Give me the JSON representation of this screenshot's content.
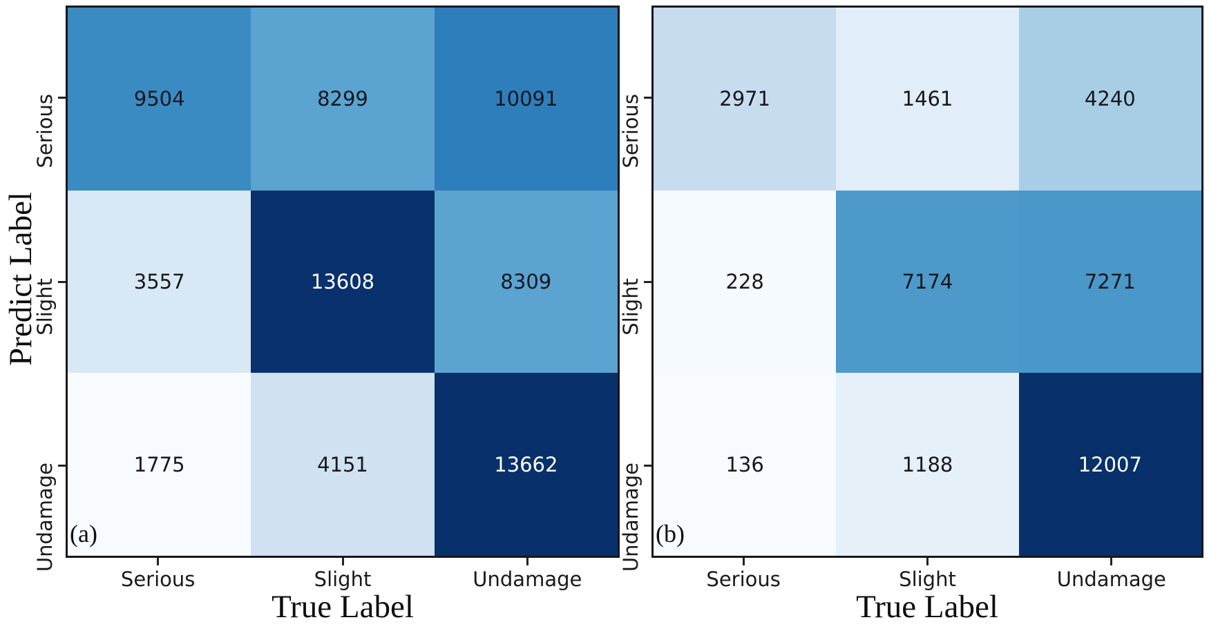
{
  "figure": {
    "background": "#ffffff",
    "spine_color": "#17171c",
    "tick_color": "#222222",
    "cell_text_dark": "#17181d",
    "cell_text_light": "#ffffff",
    "colormap": "Blues"
  },
  "chart_data": [
    {
      "type": "heatmap",
      "panel_label": "(a)",
      "xlabel": "True Label",
      "ylabel": "Predict Label",
      "x_categories": [
        "Serious",
        "Slight",
        "Undamage"
      ],
      "y_categories": [
        "Serious",
        "Slight",
        "Undamage"
      ],
      "values": [
        [
          9504,
          8299,
          10091
        ],
        [
          3557,
          13608,
          8309
        ],
        [
          1775,
          4151,
          13662
        ]
      ],
      "colormap": "Blues",
      "color_scale": {
        "min": 1775,
        "max": 13662
      },
      "grid": false,
      "legend": "none"
    },
    {
      "type": "heatmap",
      "panel_label": "(b)",
      "xlabel": "True Label",
      "ylabel": "",
      "x_categories": [
        "Serious",
        "Slight",
        "Undamage"
      ],
      "y_categories": [
        "Serious",
        "Slight",
        "Undamage"
      ],
      "values": [
        [
          2971,
          1461,
          4240
        ],
        [
          228,
          7174,
          7271
        ],
        [
          136,
          1188,
          12007
        ]
      ],
      "colormap": "Blues",
      "color_scale": {
        "min": 136,
        "max": 12007
      },
      "grid": false,
      "legend": "none"
    }
  ]
}
